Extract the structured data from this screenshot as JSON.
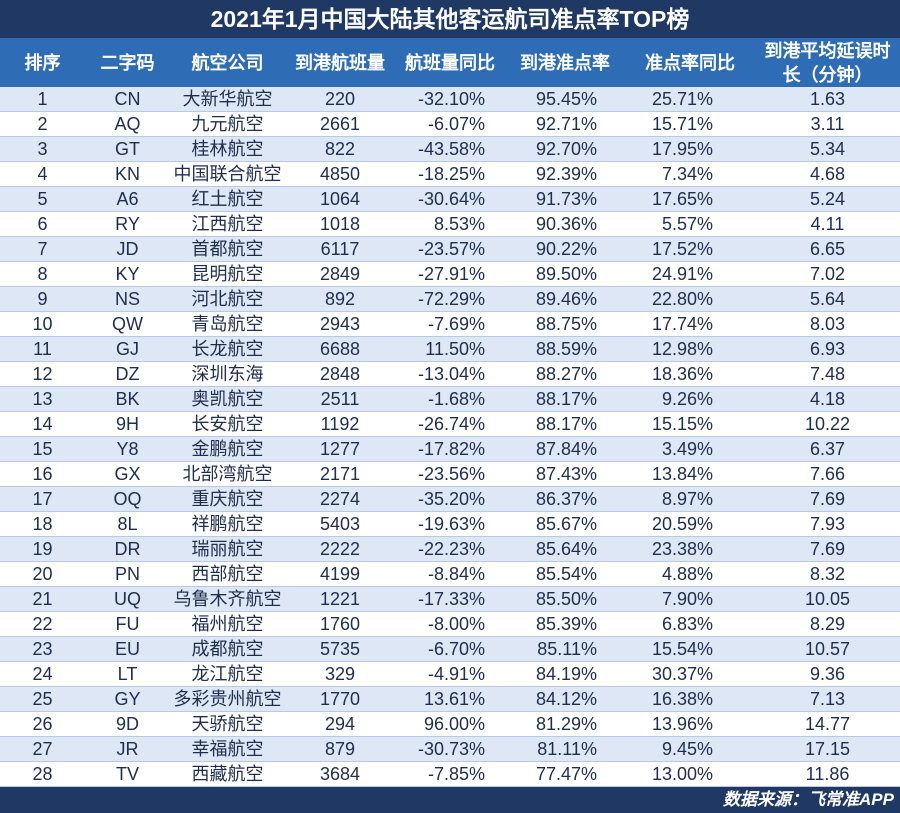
{
  "colors": {
    "title_bg": "#1F3864",
    "header_bg": "#2E6DB5",
    "row_alt_bg": "#DDE7F5",
    "row_line": "#B9C9E4",
    "text": "#1F2D4F"
  },
  "chart_data": {
    "type": "table",
    "title": "2021年1月中国大陆其他客运航司准点率TOP榜",
    "columns": [
      "排序",
      "二字码",
      "航空公司",
      "到港航班量",
      "航班量同比",
      "到港准点率",
      "准点率同比",
      "到港平均延误时长（分钟）"
    ],
    "rows": [
      [
        "1",
        "CN",
        "大新华航空",
        "220",
        "-32.10%",
        "95.45%",
        "25.71%",
        "1.63"
      ],
      [
        "2",
        "AQ",
        "九元航空",
        "2661",
        "-6.07%",
        "92.71%",
        "15.71%",
        "3.11"
      ],
      [
        "3",
        "GT",
        "桂林航空",
        "822",
        "-43.58%",
        "92.70%",
        "17.95%",
        "5.34"
      ],
      [
        "4",
        "KN",
        "中国联合航空",
        "4850",
        "-18.25%",
        "92.39%",
        "7.34%",
        "4.68"
      ],
      [
        "5",
        "A6",
        "红土航空",
        "1064",
        "-30.64%",
        "91.73%",
        "17.65%",
        "5.24"
      ],
      [
        "6",
        "RY",
        "江西航空",
        "1018",
        "8.53%",
        "90.36%",
        "5.57%",
        "4.11"
      ],
      [
        "7",
        "JD",
        "首都航空",
        "6117",
        "-23.57%",
        "90.22%",
        "17.52%",
        "6.65"
      ],
      [
        "8",
        "KY",
        "昆明航空",
        "2849",
        "-27.91%",
        "89.50%",
        "24.91%",
        "7.02"
      ],
      [
        "9",
        "NS",
        "河北航空",
        "892",
        "-72.29%",
        "89.46%",
        "22.80%",
        "5.64"
      ],
      [
        "10",
        "QW",
        "青岛航空",
        "2943",
        "-7.69%",
        "88.75%",
        "17.74%",
        "8.03"
      ],
      [
        "11",
        "GJ",
        "长龙航空",
        "6688",
        "11.50%",
        "88.59%",
        "12.98%",
        "6.93"
      ],
      [
        "12",
        "DZ",
        "深圳东海",
        "2848",
        "-13.04%",
        "88.27%",
        "18.36%",
        "7.48"
      ],
      [
        "13",
        "BK",
        "奥凯航空",
        "2511",
        "-1.68%",
        "88.17%",
        "9.26%",
        "4.18"
      ],
      [
        "14",
        "9H",
        "长安航空",
        "1192",
        "-26.74%",
        "88.17%",
        "15.15%",
        "10.22"
      ],
      [
        "15",
        "Y8",
        "金鹏航空",
        "1277",
        "-17.82%",
        "87.84%",
        "3.49%",
        "6.37"
      ],
      [
        "16",
        "GX",
        "北部湾航空",
        "2171",
        "-23.56%",
        "87.43%",
        "13.84%",
        "7.66"
      ],
      [
        "17",
        "OQ",
        "重庆航空",
        "2274",
        "-35.20%",
        "86.37%",
        "8.97%",
        "7.69"
      ],
      [
        "18",
        "8L",
        "祥鹏航空",
        "5403",
        "-19.63%",
        "85.67%",
        "20.59%",
        "7.93"
      ],
      [
        "19",
        "DR",
        "瑞丽航空",
        "2222",
        "-22.23%",
        "85.64%",
        "23.38%",
        "7.69"
      ],
      [
        "20",
        "PN",
        "西部航空",
        "4199",
        "-8.84%",
        "85.54%",
        "4.88%",
        "8.32"
      ],
      [
        "21",
        "UQ",
        "乌鲁木齐航空",
        "1221",
        "-17.33%",
        "85.50%",
        "7.90%",
        "10.05"
      ],
      [
        "22",
        "FU",
        "福州航空",
        "1760",
        "-8.00%",
        "85.39%",
        "6.83%",
        "8.29"
      ],
      [
        "23",
        "EU",
        "成都航空",
        "5735",
        "-6.70%",
        "85.11%",
        "15.54%",
        "10.57"
      ],
      [
        "24",
        "LT",
        "龙江航空",
        "329",
        "-4.91%",
        "84.19%",
        "30.37%",
        "9.36"
      ],
      [
        "25",
        "GY",
        "多彩贵州航空",
        "1770",
        "13.61%",
        "84.12%",
        "16.38%",
        "7.13"
      ],
      [
        "26",
        "9D",
        "天骄航空",
        "294",
        "96.00%",
        "81.29%",
        "13.96%",
        "14.77"
      ],
      [
        "27",
        "JR",
        "幸福航空",
        "879",
        "-30.73%",
        "81.11%",
        "9.45%",
        "17.15"
      ],
      [
        "28",
        "TV",
        "西藏航空",
        "3684",
        "-7.85%",
        "77.47%",
        "13.00%",
        "11.86"
      ]
    ],
    "source": "数据来源：飞常准APP"
  }
}
